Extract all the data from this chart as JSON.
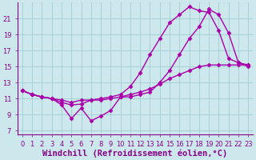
{
  "xlabel": "Windchill (Refroidissement éolien,°C)",
  "ylabel": "",
  "xlim": [
    -0.5,
    23.5
  ],
  "ylim": [
    6.5,
    23.0
  ],
  "xticks": [
    0,
    1,
    2,
    3,
    4,
    5,
    6,
    7,
    8,
    9,
    10,
    11,
    12,
    13,
    14,
    15,
    16,
    17,
    18,
    19,
    20,
    21,
    22,
    23
  ],
  "yticks": [
    7,
    9,
    11,
    13,
    15,
    17,
    19,
    21
  ],
  "background_color": "#cce8ec",
  "grid_color": "#a0ccd4",
  "line_color": "#aa00aa",
  "line1_x": [
    0,
    1,
    2,
    3,
    4,
    5,
    6,
    7,
    8,
    9,
    10,
    11,
    12,
    13,
    14,
    15,
    16,
    17,
    18,
    19,
    20,
    21,
    22,
    23
  ],
  "line1_y": [
    12.0,
    11.5,
    11.2,
    11.0,
    10.2,
    8.5,
    9.8,
    8.2,
    8.8,
    9.5,
    11.2,
    11.2,
    11.5,
    11.8,
    13.0,
    14.5,
    16.5,
    18.5,
    20.0,
    22.2,
    21.5,
    19.2,
    15.5,
    15.2
  ],
  "line2_x": [
    0,
    1,
    2,
    3,
    4,
    5,
    6,
    7,
    8,
    9,
    10,
    11,
    12,
    13,
    14,
    15,
    16,
    17,
    18,
    19,
    20,
    21,
    22,
    23
  ],
  "line2_y": [
    12.0,
    11.5,
    11.2,
    11.0,
    10.8,
    10.5,
    10.8,
    10.8,
    10.8,
    11.0,
    11.2,
    11.5,
    11.8,
    12.2,
    12.8,
    13.5,
    14.0,
    14.5,
    15.0,
    15.2,
    15.2,
    15.2,
    15.2,
    15.2
  ],
  "line3_x": [
    0,
    1,
    2,
    3,
    4,
    5,
    6,
    7,
    8,
    9,
    10,
    11,
    12,
    13,
    14,
    15,
    16,
    17,
    18,
    19,
    20,
    21,
    22,
    23
  ],
  "line3_y": [
    12.0,
    11.5,
    11.2,
    11.0,
    10.5,
    10.2,
    10.3,
    10.8,
    11.0,
    11.2,
    11.5,
    12.5,
    14.2,
    16.5,
    18.5,
    20.5,
    21.5,
    22.5,
    22.0,
    21.8,
    19.5,
    16.0,
    15.5,
    15.0
  ],
  "marker": "D",
  "markersize": 2.5,
  "linewidth": 1.0,
  "font_color": "#880088",
  "tick_fontsize": 6.0,
  "xlabel_fontsize": 7.5,
  "title_fontsize": 7
}
